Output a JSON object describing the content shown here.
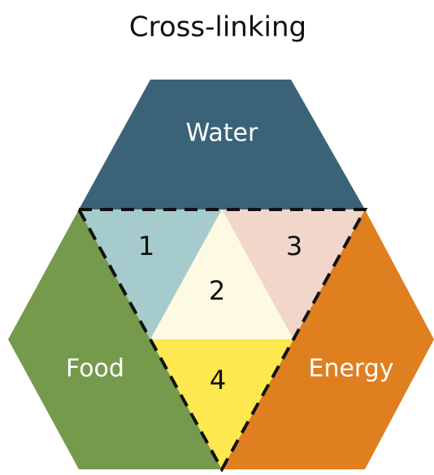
{
  "title": "Cross-linking",
  "nodes": [
    {
      "label": "Water"
    },
    {
      "label": "Food"
    },
    {
      "label": "Energy"
    }
  ],
  "overlaps": [
    {
      "label": "1"
    },
    {
      "label": "2"
    },
    {
      "label": "3"
    },
    {
      "label": "4"
    }
  ]
}
